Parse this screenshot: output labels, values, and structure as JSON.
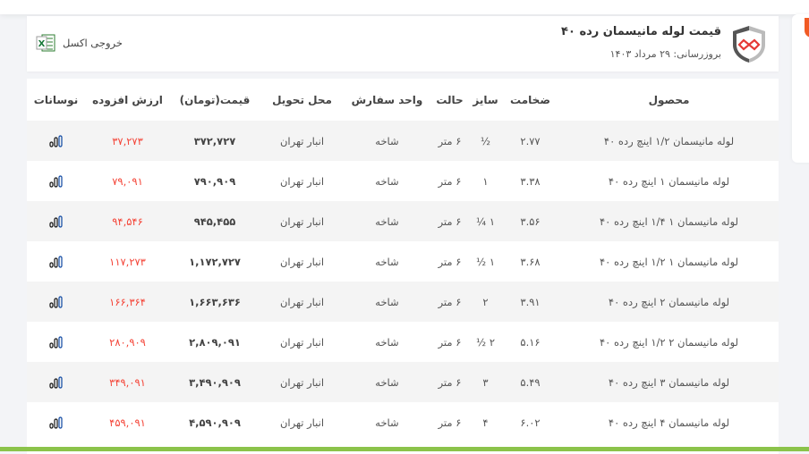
{
  "header": {
    "title": "قیمت لوله مانیسمان رده ۴۰",
    "updated": "بروزرسانی: ۲۹ مرداد ۱۴۰۳",
    "excel_label": "خروجی اکسل",
    "logo_icon": "shield-infinity-logo",
    "excel_icon": "excel-icon"
  },
  "colors": {
    "accent": "#f15a24",
    "vat": "#f44336",
    "row_alt": "#f4f4f4",
    "bottom_bar": "#8bc34a"
  },
  "table": {
    "columns": [
      "محصول",
      "ضخامت",
      "سایز",
      "حالت",
      "واحد سفارش",
      "محل تحویل",
      "قیمت(تومان)",
      "ارزش افزوده",
      "نوسانات"
    ],
    "rows": [
      {
        "product": "لوله مانیسمان ۱/۲ اینچ رده ۴۰",
        "thickness": "۲.۷۷",
        "size": "½",
        "state": "۶ متر",
        "unit": "شاخه",
        "location": "انبار تهران",
        "price": "۳۷۲,۷۲۷",
        "vat": "۳۷,۲۷۳",
        "chart": "bar-chart-icon"
      },
      {
        "product": "لوله مانیسمان ۱ اینچ رده ۴۰",
        "thickness": "۳.۳۸",
        "size": "۱",
        "state": "۶ متر",
        "unit": "شاخه",
        "location": "انبار تهران",
        "price": "۷۹۰,۹۰۹",
        "vat": "۷۹,۰۹۱",
        "chart": "bar-chart-icon"
      },
      {
        "product": "لوله مانیسمان ۱ ۱/۴ اینچ رده ۴۰",
        "thickness": "۳.۵۶",
        "size": "۱ ¼",
        "state": "۶ متر",
        "unit": "شاخه",
        "location": "انبار تهران",
        "price": "۹۴۵,۴۵۵",
        "vat": "۹۴,۵۴۶",
        "chart": "bar-chart-icon"
      },
      {
        "product": "لوله مانیسمان ۱ ۱/۲ اینچ رده ۴۰",
        "thickness": "۳.۶۸",
        "size": "۱ ½",
        "state": "۶ متر",
        "unit": "شاخه",
        "location": "انبار تهران",
        "price": "۱,۱۷۲,۷۲۷",
        "vat": "۱۱۷,۲۷۳",
        "chart": "bar-chart-icon"
      },
      {
        "product": "لوله مانیسمان ۲ اینچ رده ۴۰",
        "thickness": "۳.۹۱",
        "size": "۲",
        "state": "۶ متر",
        "unit": "شاخه",
        "location": "انبار تهران",
        "price": "۱,۶۶۳,۶۳۶",
        "vat": "۱۶۶,۳۶۴",
        "chart": "bar-chart-icon"
      },
      {
        "product": "لوله مانیسمان ۲ ۱/۲ اینچ رده ۴۰",
        "thickness": "۵.۱۶",
        "size": "۲ ½",
        "state": "۶ متر",
        "unit": "شاخه",
        "location": "انبار تهران",
        "price": "۲,۸۰۹,۰۹۱",
        "vat": "۲۸۰,۹۰۹",
        "chart": "bar-chart-icon"
      },
      {
        "product": "لوله مانیسمان ۳ اینچ رده ۴۰",
        "thickness": "۵.۴۹",
        "size": "۳",
        "state": "۶ متر",
        "unit": "شاخه",
        "location": "انبار تهران",
        "price": "۳,۴۹۰,۹۰۹",
        "vat": "۳۴۹,۰۹۱",
        "chart": "bar-chart-icon"
      },
      {
        "product": "لوله مانیسمان ۴ اینچ رده ۴۰",
        "thickness": "۶.۰۲",
        "size": "۴",
        "state": "۶ متر",
        "unit": "شاخه",
        "location": "انبار تهران",
        "price": "۴,۵۹۰,۹۰۹",
        "vat": "۴۵۹,۰۹۱",
        "chart": "bar-chart-icon"
      }
    ]
  }
}
